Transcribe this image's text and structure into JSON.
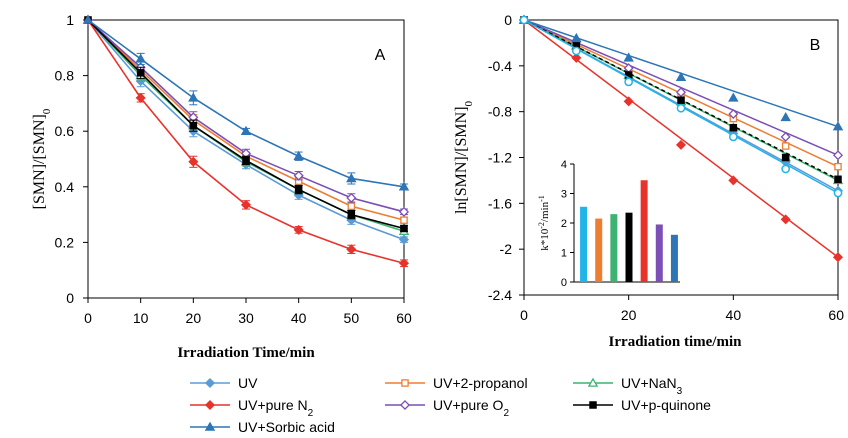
{
  "colors": {
    "UV": "#5b9bd5",
    "UV+2-propanol": "#ed7d31",
    "UV+NaN3": "#3cb371",
    "UV+pure N2": "#e8322c",
    "UV+pure O2": "#7b4fb5",
    "UV+p-quinone": "#000000",
    "UV+Sorbic acid": "#2e75b6",
    "cyan": "#20b4e8",
    "axis": "#000000",
    "grid": "#d9d9d9"
  },
  "legend": {
    "items": [
      {
        "key": "UV",
        "text": "UV",
        "sub": "",
        "marker": "diamond-filled"
      },
      {
        "key": "UV+2-propanol",
        "text": "UV+2-propanol",
        "sub": "",
        "marker": "square-open"
      },
      {
        "key": "UV+NaN3",
        "text": "UV+NaN",
        "sub": "3",
        "marker": "triangle-open"
      },
      {
        "key": "UV+pure N2",
        "text": "UV+pure N",
        "sub": "2",
        "marker": "diamond-filled"
      },
      {
        "key": "UV+pure O2",
        "text": "UV+pure O",
        "sub": "2",
        "marker": "diamond-open"
      },
      {
        "key": "UV+p-quinone",
        "text": "UV+p-quinone",
        "sub": "",
        "marker": "square-filled"
      },
      {
        "key": "UV+Sorbic acid",
        "text": "UV+Sorbic acid",
        "sub": "",
        "marker": "triangle-filled"
      }
    ]
  },
  "chart_data": [
    {
      "type": "line",
      "panel_label": "A",
      "xlabel": "Irradiation Time/min",
      "ylabel_main": "[SMN]/[SMN]",
      "ylabel_sub": "0",
      "xlim": [
        0,
        60
      ],
      "ylim": [
        0,
        1
      ],
      "x_ticks": [
        0,
        10,
        20,
        30,
        40,
        50,
        60
      ],
      "y_ticks": [
        0,
        0.2,
        0.4,
        0.6,
        0.8,
        1
      ],
      "y_tick_labels": [
        "0",
        "0.2",
        "0.4",
        "0.6",
        "0.8",
        "1"
      ],
      "grid": false,
      "error_bars": true,
      "x": [
        0,
        10,
        20,
        30,
        40,
        50,
        60
      ],
      "series": [
        {
          "name": "UV",
          "values": [
            1,
            0.78,
            0.6,
            0.48,
            0.37,
            0.28,
            0.21
          ],
          "error": [
            0,
            0.02,
            0.02,
            0.015,
            0.015,
            0.015,
            0.01
          ]
        },
        {
          "name": "UV+2-propanol",
          "values": [
            1,
            0.82,
            0.64,
            0.51,
            0.42,
            0.33,
            0.28
          ],
          "error": [
            0,
            0.02,
            0.02,
            0.015,
            0.015,
            0.015,
            0.01
          ]
        },
        {
          "name": "UV+NaN3",
          "values": [
            1,
            0.8,
            0.62,
            0.49,
            0.39,
            0.3,
            0.24
          ],
          "error": [
            0,
            0.02,
            0.02,
            0.015,
            0.015,
            0.015,
            0.01
          ]
        },
        {
          "name": "UV+pure N2",
          "values": [
            1,
            0.72,
            0.49,
            0.335,
            0.245,
            0.175,
            0.125
          ],
          "error": [
            0,
            0.015,
            0.02,
            0.015,
            0.012,
            0.015,
            0.012
          ]
        },
        {
          "name": "UV+pure O2",
          "values": [
            1,
            0.83,
            0.65,
            0.52,
            0.44,
            0.36,
            0.31
          ],
          "error": [
            0,
            0.02,
            0.02,
            0.015,
            0.015,
            0.015,
            0.01
          ]
        },
        {
          "name": "UV+p-quinone",
          "values": [
            1,
            0.81,
            0.62,
            0.495,
            0.39,
            0.3,
            0.25
          ],
          "error": [
            0,
            0.02,
            0.02,
            0.015,
            0.015,
            0.015,
            0.01
          ]
        },
        {
          "name": "UV+Sorbic acid",
          "values": [
            1,
            0.86,
            0.72,
            0.6,
            0.51,
            0.43,
            0.4
          ],
          "error": [
            0,
            0.02,
            0.025,
            0.01,
            0.015,
            0.02,
            0.01
          ]
        }
      ]
    },
    {
      "type": "line",
      "panel_label": "B",
      "xlabel": "Irradiation time/min",
      "ylabel_main": "ln[SMN]/[SMN]",
      "ylabel_sub": "0",
      "xlim": [
        0,
        60
      ],
      "ylim": [
        -2.4,
        0
      ],
      "x_ticks": [
        0,
        20,
        40,
        60
      ],
      "y_ticks": [
        0,
        -0.4,
        -0.8,
        -1.2,
        -1.6,
        -2,
        -2.4
      ],
      "y_tick_labels": [
        "0",
        "-0.4",
        "-0.8",
        "-1.2",
        "-1.6",
        "-2",
        "-2.4"
      ],
      "grid": false,
      "x": [
        0,
        10,
        20,
        30,
        40,
        50,
        60
      ],
      "series": [
        {
          "name": "UV",
          "values": [
            0,
            -0.25,
            -0.51,
            -0.74,
            -0.99,
            -1.24,
            -1.49
          ]
        },
        {
          "name": "UV+2-propanol",
          "values": [
            0,
            -0.2,
            -0.44,
            -0.66,
            -0.86,
            -1.1,
            -1.28
          ]
        },
        {
          "name": "UV+NaN3",
          "values": [
            0,
            -0.23,
            -0.48,
            -0.71,
            -0.94,
            -1.2,
            -1.4
          ]
        },
        {
          "name": "UV+pure N2",
          "values": [
            0,
            -0.33,
            -0.71,
            -1.09,
            -1.4,
            -1.74,
            -2.07
          ]
        },
        {
          "name": "UV+pure O2",
          "values": [
            0,
            -0.19,
            -0.42,
            -0.63,
            -0.82,
            -1.02,
            -1.18
          ]
        },
        {
          "name": "UV+p-quinone",
          "values": [
            0,
            -0.22,
            -0.48,
            -0.7,
            -0.94,
            -1.2,
            -1.39
          ]
        },
        {
          "name": "UV+Sorbic acid",
          "values": [
            0,
            -0.16,
            -0.33,
            -0.5,
            -0.68,
            -0.85,
            -0.93
          ]
        },
        {
          "name": "",
          "values": [
            0,
            -0.27,
            -0.54,
            -0.77,
            -1.02,
            -1.3,
            -1.51
          ]
        }
      ],
      "fit_lines": true
    },
    {
      "type": "bar",
      "inset_of": "B",
      "ylabel": "k*10",
      "ylabel_sup1": "-2",
      "ylabel_mid": "/min",
      "ylabel_sup2": "-1",
      "ylim": [
        0,
        4
      ],
      "y_ticks": [
        0,
        1,
        2,
        3,
        4
      ],
      "y_tick_labels": [
        "0",
        "1",
        "2",
        "3",
        "4"
      ],
      "values": [
        2.55,
        2.15,
        2.3,
        2.35,
        3.45,
        1.95,
        1.6
      ],
      "bar_colors": [
        "cyan",
        "UV+2-propanol",
        "UV+NaN3",
        "UV+p-quinone",
        "UV+pure N2",
        "UV+pure O2",
        "UV+Sorbic acid"
      ]
    }
  ]
}
